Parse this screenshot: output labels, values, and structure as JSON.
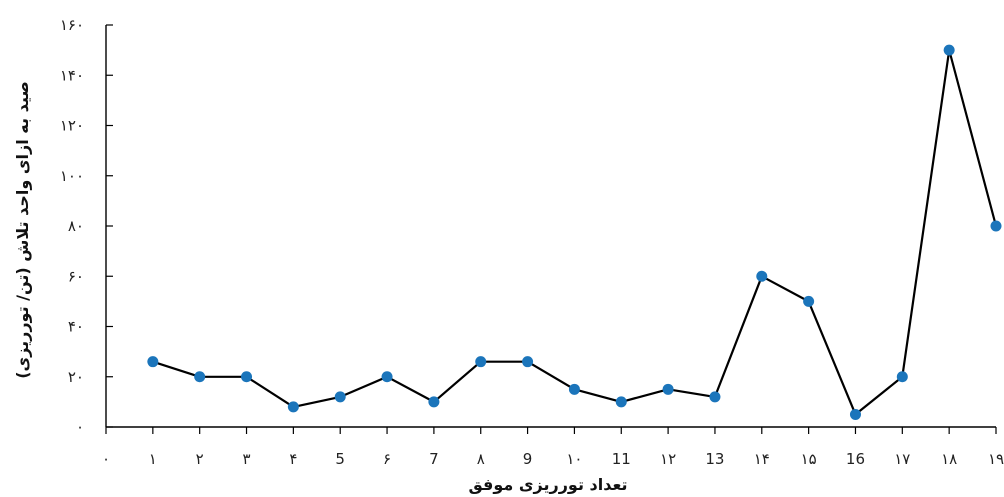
{
  "chart_data": {
    "type": "line",
    "xlabel": "تعداد تورریزی موفق",
    "ylabel": "صید به ازای واحد تلاش (تن/ تورریزی)",
    "ylim": [
      0,
      160
    ],
    "yticks": [
      0,
      20,
      40,
      60,
      80,
      100,
      120,
      140,
      160
    ],
    "ytick_labels": [
      "۰",
      "۲۰",
      "۴۰",
      "۶۰",
      "۸۰",
      "۱۰۰",
      "۱۲۰",
      "۱۴۰",
      "۱۶۰"
    ],
    "xlim": [
      0,
      19
    ],
    "xticks": [
      0,
      1,
      2,
      3,
      4,
      5,
      6,
      7,
      8,
      9,
      10,
      11,
      12,
      13,
      14,
      15,
      16,
      17,
      18,
      19
    ],
    "xtick_labels": [
      "۰",
      "۱",
      "۲",
      "۳",
      "۴",
      "5",
      "۶",
      "7",
      "۸",
      "9",
      "۱۰",
      "11",
      "۱۲",
      "13",
      "۱۴",
      "۱۵",
      "16",
      "۱۷",
      "۱۸",
      "۱۹"
    ],
    "series": [
      {
        "x": [
          1,
          2,
          3,
          4,
          5,
          6,
          7,
          8,
          9,
          10,
          11,
          12,
          13,
          14,
          15,
          16,
          17,
          18,
          19
        ],
        "values": [
          26,
          20,
          20,
          8,
          12,
          20,
          10,
          26,
          26,
          15,
          10,
          15,
          12,
          60,
          50,
          5,
          20,
          150,
          80
        ]
      }
    ],
    "line_color": "#000000",
    "marker_color": "#1b75bb",
    "grid": false,
    "legend": "none"
  }
}
